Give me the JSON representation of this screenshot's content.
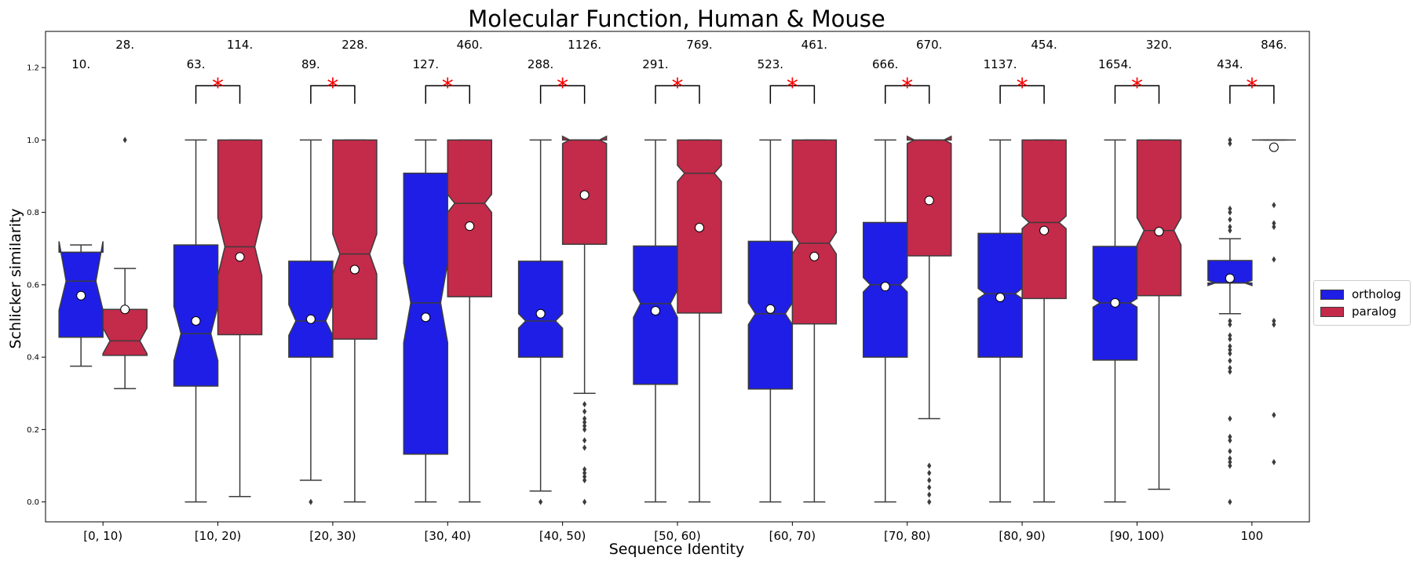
{
  "chart_data": {
    "type": "box",
    "title": "Molecular Function, Human & Mouse",
    "xlabel": "Sequence Identity",
    "ylabel": "Schlicker similarity",
    "ylim": [
      -0.055,
      1.3
    ],
    "yticks": [
      "0.0",
      "0.2",
      "0.4",
      "0.6",
      "0.8",
      "1.0",
      "1.2"
    ],
    "ytick_values": [
      0.0,
      0.2,
      0.4,
      0.6,
      0.8,
      1.0,
      1.2
    ],
    "categories": [
      "[0, 10)",
      "[10, 20)",
      "[20, 30)",
      "[30, 40)",
      "[40, 50)",
      "[50, 60)",
      "[60, 70)",
      "[70, 80)",
      "[80, 90)",
      "[90, 100)",
      "100"
    ],
    "legend_position": "right",
    "grid": false,
    "series": [
      {
        "name": "ortholog",
        "color": "#1e1ee6",
        "counts": [
          "10.",
          "63.",
          "89.",
          "127.",
          "288.",
          "291.",
          "523.",
          "666.",
          "1137.",
          "1654.",
          "434."
        ],
        "boxes": [
          {
            "q1": 0.455,
            "med": 0.61,
            "q3": 0.69,
            "notch_lo": 0.53,
            "notch_hi": 0.72,
            "wlo": 0.375,
            "whi": 0.71,
            "mean": 0.57,
            "outliers": []
          },
          {
            "q1": 0.32,
            "med": 0.465,
            "q3": 0.71,
            "notch_lo": 0.39,
            "notch_hi": 0.54,
            "wlo": 0.0,
            "whi": 1.0,
            "mean": 0.5,
            "outliers": []
          },
          {
            "q1": 0.4,
            "med": 0.5,
            "q3": 0.665,
            "notch_lo": 0.46,
            "notch_hi": 0.545,
            "wlo": 0.06,
            "whi": 1.0,
            "mean": 0.505,
            "outliers": [
              0.0
            ]
          },
          {
            "q1": 0.132,
            "med": 0.55,
            "q3": 0.908,
            "notch_lo": 0.44,
            "notch_hi": 0.66,
            "wlo": 0.0,
            "whi": 1.0,
            "mean": 0.51,
            "outliers": []
          },
          {
            "q1": 0.4,
            "med": 0.5,
            "q3": 0.665,
            "notch_lo": 0.48,
            "notch_hi": 0.52,
            "wlo": 0.03,
            "whi": 1.0,
            "mean": 0.52,
            "outliers": [
              0.0
            ]
          },
          {
            "q1": 0.325,
            "med": 0.548,
            "q3": 0.707,
            "notch_lo": 0.51,
            "notch_hi": 0.585,
            "wlo": 0.0,
            "whi": 1.0,
            "mean": 0.528,
            "outliers": []
          },
          {
            "q1": 0.312,
            "med": 0.52,
            "q3": 0.72,
            "notch_lo": 0.49,
            "notch_hi": 0.55,
            "wlo": 0.0,
            "whi": 1.0,
            "mean": 0.533,
            "outliers": []
          },
          {
            "q1": 0.4,
            "med": 0.6,
            "q3": 0.772,
            "notch_lo": 0.58,
            "notch_hi": 0.62,
            "wlo": 0.0,
            "whi": 1.0,
            "mean": 0.595,
            "outliers": []
          },
          {
            "q1": 0.4,
            "med": 0.575,
            "q3": 0.742,
            "notch_lo": 0.562,
            "notch_hi": 0.59,
            "wlo": 0.0,
            "whi": 1.0,
            "mean": 0.565,
            "outliers": []
          },
          {
            "q1": 0.392,
            "med": 0.55,
            "q3": 0.706,
            "notch_lo": 0.538,
            "notch_hi": 0.562,
            "wlo": 0.0,
            "whi": 1.0,
            "mean": 0.55,
            "outliers": []
          },
          {
            "q1": 0.605,
            "med": 0.605,
            "q3": 0.667,
            "notch_lo": 0.598,
            "notch_hi": 0.612,
            "wlo": 0.52,
            "whi": 0.727,
            "mean": 0.618,
            "outliers": [
              1.0,
              0.99,
              0.81,
              0.8,
              0.78,
              0.76,
              0.75,
              0.5,
              0.49,
              0.46,
              0.45,
              0.43,
              0.42,
              0.41,
              0.39,
              0.37,
              0.36,
              0.23,
              0.18,
              0.17,
              0.14,
              0.12,
              0.11,
              0.1,
              0.0
            ]
          }
        ]
      },
      {
        "name": "paralog",
        "color": "#c42a4a",
        "counts": [
          "28.",
          "114.",
          "228.",
          "460.",
          "1126.",
          "769.",
          "461.",
          "670.",
          "454.",
          "320.",
          "846."
        ],
        "boxes": [
          {
            "q1": 0.405,
            "med": 0.445,
            "q3": 0.532,
            "notch_lo": 0.41,
            "notch_hi": 0.48,
            "wlo": 0.313,
            "whi": 0.645,
            "mean": 0.532,
            "outliers": [
              1.0
            ]
          },
          {
            "q1": 0.462,
            "med": 0.705,
            "q3": 1.0,
            "notch_lo": 0.625,
            "notch_hi": 0.785,
            "wlo": 0.015,
            "whi": 1.0,
            "mean": 0.677,
            "outliers": []
          },
          {
            "q1": 0.45,
            "med": 0.685,
            "q3": 1.0,
            "notch_lo": 0.63,
            "notch_hi": 0.74,
            "wlo": 0.0,
            "whi": 1.0,
            "mean": 0.642,
            "outliers": []
          },
          {
            "q1": 0.567,
            "med": 0.825,
            "q3": 1.0,
            "notch_lo": 0.8,
            "notch_hi": 0.85,
            "wlo": 0.0,
            "whi": 1.0,
            "mean": 0.762,
            "outliers": []
          },
          {
            "q1": 0.712,
            "med": 1.0,
            "q3": 1.0,
            "notch_lo": 0.99,
            "notch_hi": 1.01,
            "wlo": 0.3,
            "whi": 1.0,
            "mean": 0.848,
            "outliers": [
              0.27,
              0.25,
              0.23,
              0.22,
              0.21,
              0.2,
              0.17,
              0.15,
              0.09,
              0.08,
              0.07,
              0.06,
              0.0
            ]
          },
          {
            "q1": 0.522,
            "med": 0.908,
            "q3": 1.0,
            "notch_lo": 0.885,
            "notch_hi": 0.93,
            "wlo": 0.0,
            "whi": 1.0,
            "mean": 0.758,
            "outliers": []
          },
          {
            "q1": 0.492,
            "med": 0.715,
            "q3": 1.0,
            "notch_lo": 0.685,
            "notch_hi": 0.745,
            "wlo": 0.0,
            "whi": 1.0,
            "mean": 0.678,
            "outliers": []
          },
          {
            "q1": 0.68,
            "med": 1.0,
            "q3": 1.0,
            "notch_lo": 0.99,
            "notch_hi": 1.01,
            "wlo": 0.23,
            "whi": 1.0,
            "mean": 0.833,
            "outliers": [
              0.1,
              0.08,
              0.06,
              0.04,
              0.02,
              0.0
            ]
          },
          {
            "q1": 0.562,
            "med": 0.772,
            "q3": 1.0,
            "notch_lo": 0.755,
            "notch_hi": 0.79,
            "wlo": 0.0,
            "whi": 1.0,
            "mean": 0.75,
            "outliers": []
          },
          {
            "q1": 0.57,
            "med": 0.75,
            "q3": 1.0,
            "notch_lo": 0.71,
            "notch_hi": 0.785,
            "wlo": 0.035,
            "whi": 1.0,
            "mean": 0.747,
            "outliers": []
          },
          {
            "q1": 1.0,
            "med": 1.0,
            "q3": 1.0,
            "notch_lo": 1.0,
            "notch_hi": 1.0,
            "wlo": 1.0,
            "whi": 1.0,
            "mean": 0.98,
            "outliers": [
              0.82,
              0.77,
              0.76,
              0.67,
              0.5,
              0.49,
              0.24,
              0.11
            ]
          }
        ]
      }
    ],
    "significance": {
      "marker": "*",
      "color": "#ff0000",
      "groups": [
        "[10, 20)",
        "[20, 30)",
        "[30, 40)",
        "[40, 50)",
        "[50, 60)",
        "[60, 70)",
        "[70, 80)",
        "[80, 90)",
        "[90, 100)",
        "100"
      ]
    }
  }
}
